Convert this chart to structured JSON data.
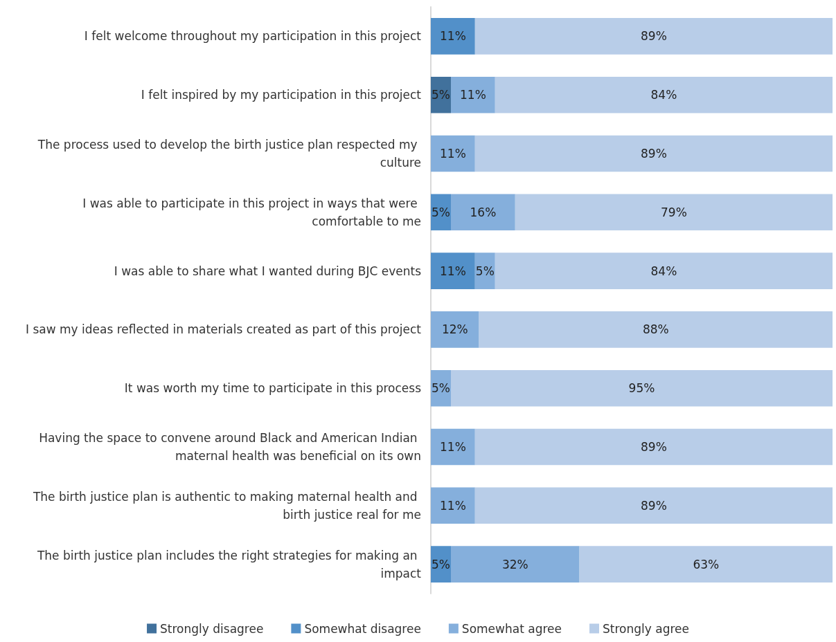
{
  "chart_data": {
    "type": "bar",
    "orientation": "horizontal",
    "stacked": true,
    "legend": "bottom",
    "xlim": [
      0,
      100
    ],
    "tick_labels": "y",
    "categories": [
      "I felt welcome throughout my participation in this project",
      "I felt inspired by my participation in this project",
      "The process used to develop the birth justice plan respected my culture",
      "I was able to participate in this project in ways that were comfortable to me",
      "I was able to share what I wanted during BJC events",
      "I saw my ideas reflected in materials created as part of this project",
      "It was worth my time to participate in this process",
      "Having the space to convene around Black and American Indian maternal health was beneficial on its own",
      "The birth justice plan is authentic to making maternal health and birth justice real for me",
      "The birth justice plan includes the right strategies for making an impact"
    ],
    "series": [
      {
        "name": "Strongly disagree",
        "color": "#41719c",
        "values": [
          null,
          5,
          null,
          null,
          null,
          null,
          null,
          null,
          null,
          null
        ],
        "value_labels": [
          null,
          "5%",
          null,
          null,
          null,
          null,
          null,
          null,
          null,
          null
        ]
      },
      {
        "name": "Somewhat disagree",
        "color": "#5290c9",
        "values": [
          11,
          null,
          null,
          5,
          11,
          null,
          null,
          null,
          null,
          5
        ],
        "value_labels": [
          "11%",
          null,
          null,
          "5%",
          "11%",
          null,
          null,
          null,
          null,
          "5%"
        ]
      },
      {
        "name": "Somewhat agree",
        "color": "#85afdc",
        "values": [
          null,
          11,
          11,
          16,
          5,
          12,
          5,
          11,
          11,
          32
        ],
        "value_labels": [
          null,
          "11%",
          "11%",
          "16%",
          "5%",
          "12%",
          "5%",
          "11%",
          "11%",
          "32%"
        ]
      },
      {
        "name": "Strongly agree",
        "color": "#b8cde8",
        "values": [
          89,
          84,
          89,
          79,
          84,
          88,
          95,
          89,
          89,
          63
        ],
        "value_labels": [
          "89%",
          "84%",
          "89%",
          "79%",
          "84%",
          "88%",
          "95%",
          "89%",
          "89%",
          "63%"
        ]
      }
    ]
  }
}
